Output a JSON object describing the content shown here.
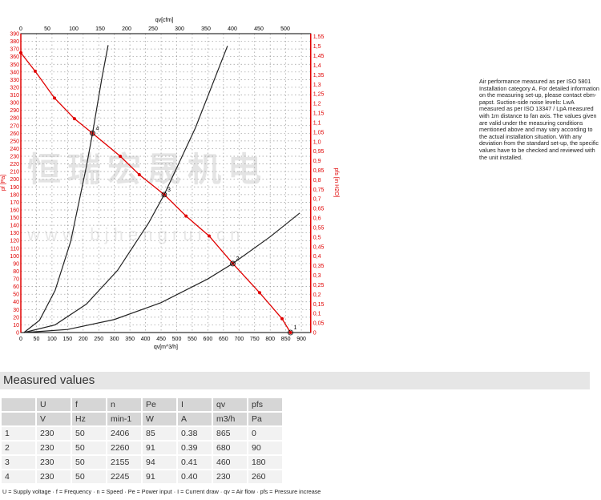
{
  "chart_data": {
    "type": "line",
    "xlabel": "qv[m^3/h]",
    "x2label": "qv[cfm]",
    "ylabel": "pf [Pa]",
    "y2label": "pfs [in H2O]",
    "xlim": [
      0,
      930
    ],
    "ylim": [
      0,
      390
    ],
    "x2lim": [
      0,
      530
    ],
    "y2lim": [
      0,
      1.55
    ],
    "grid": true,
    "series": [
      {
        "role": "fan-curve",
        "color": "#e00000",
        "x": [
          0,
          46,
          108,
          172,
          230,
          319,
          380,
          460,
          530,
          604,
          680,
          766,
          838,
          865
        ],
        "y": [
          365,
          341,
          306,
          279,
          260,
          230,
          206,
          180,
          152,
          126,
          90,
          52,
          18,
          0
        ]
      },
      {
        "role": "system-curve",
        "label": "4",
        "color": "#222222",
        "x": [
          10,
          60,
          110,
          160,
          210,
          230,
          260,
          280
        ],
        "y": [
          0,
          16,
          55,
          119,
          216,
          260,
          332,
          375
        ]
      },
      {
        "role": "system-curve",
        "label": "3",
        "color": "#222222",
        "x": [
          10,
          110,
          210,
          310,
          410,
          460,
          560,
          663
        ],
        "y": [
          0,
          10,
          37,
          81,
          143,
          180,
          267,
          374
        ]
      },
      {
        "role": "system-curve",
        "label": "2",
        "color": "#222222",
        "x": [
          10,
          150,
          300,
          450,
          600,
          680,
          800,
          895
        ],
        "y": [
          0,
          4,
          17,
          39,
          70,
          90,
          125,
          156
        ]
      }
    ],
    "operating_points": [
      {
        "label": "1",
        "x": 865,
        "y": 0
      },
      {
        "label": "2",
        "x": 680,
        "y": 90
      },
      {
        "label": "3",
        "x": 460,
        "y": 180
      },
      {
        "label": "4",
        "x": 230,
        "y": 260
      }
    ]
  },
  "watermark": {
    "cn": "恒瑞宏晟机电",
    "url": "w w w . b j h e n g r u i . c n"
  },
  "note": "Air performance measured as per ISO 5801 Installation category A. For detailed information on the measuring set-up, please contact ebm-papst. Suction-side noise levels: LwA measured as per ISO 13347 / LpA measured with 1m distance to fan axis. The values given are valid under the measuring conditions mentioned above and may vary according to the actual installation situation. With any deviation from the standard set-up, the specific values have to be checked and reviewed with the unit installed.",
  "measured": {
    "title": "Measured values",
    "headers": [
      "",
      "U",
      "f",
      "n",
      "Pe",
      "I",
      "qv",
      "pfs"
    ],
    "units": [
      "",
      "V",
      "Hz",
      "min-1",
      "W",
      "A",
      "m3/h",
      "Pa"
    ],
    "rows": [
      [
        "1",
        "230",
        "50",
        "2406",
        "85",
        "0.38",
        "865",
        "0"
      ],
      [
        "2",
        "230",
        "50",
        "2260",
        "91",
        "0.39",
        "680",
        "90"
      ],
      [
        "3",
        "230",
        "50",
        "2155",
        "94",
        "0.41",
        "460",
        "180"
      ],
      [
        "4",
        "230",
        "50",
        "2245",
        "91",
        "0.40",
        "230",
        "260"
      ]
    ],
    "legend": "U = Supply voltage · f = Frequency · n = Speed · Pe = Power input · I = Current draw · qv = Air flow · pfs = Pressure increase"
  }
}
